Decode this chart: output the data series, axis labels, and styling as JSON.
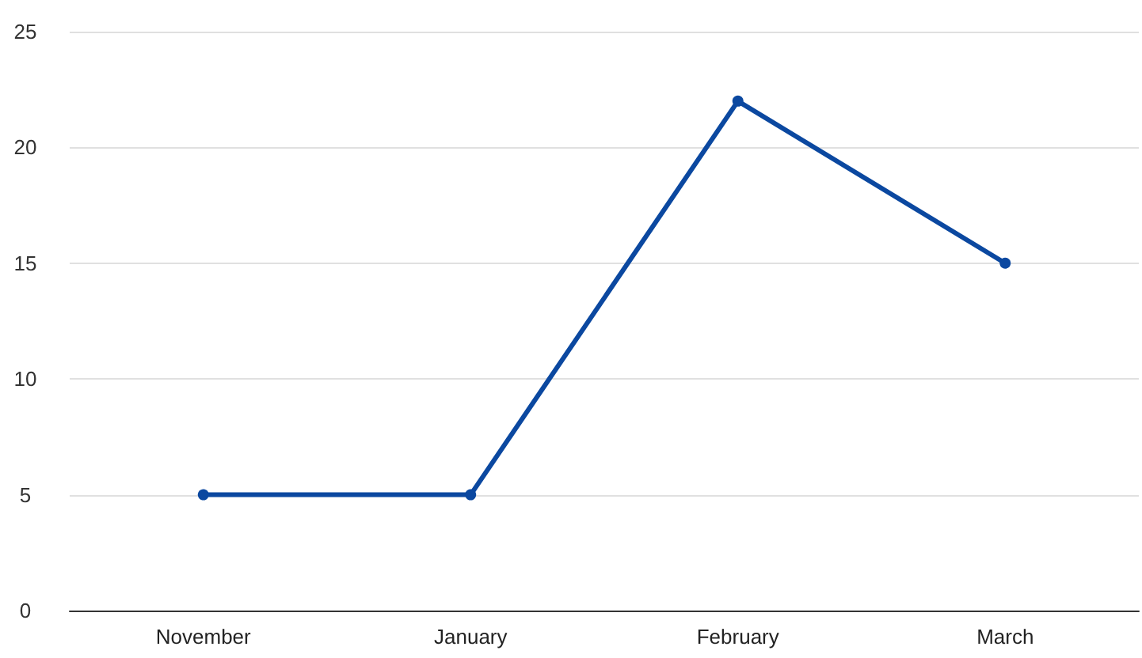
{
  "chart_data": {
    "type": "line",
    "categories": [
      "November",
      "January",
      "February",
      "March"
    ],
    "series": [
      {
        "color": "#0b48a0",
        "values": [
          5,
          5,
          22,
          15
        ]
      }
    ],
    "ylim": [
      0,
      25
    ],
    "yticks": [
      0,
      5,
      10,
      15,
      20,
      25
    ],
    "grid": "y",
    "marker": "circle",
    "line_style": "solid"
  }
}
